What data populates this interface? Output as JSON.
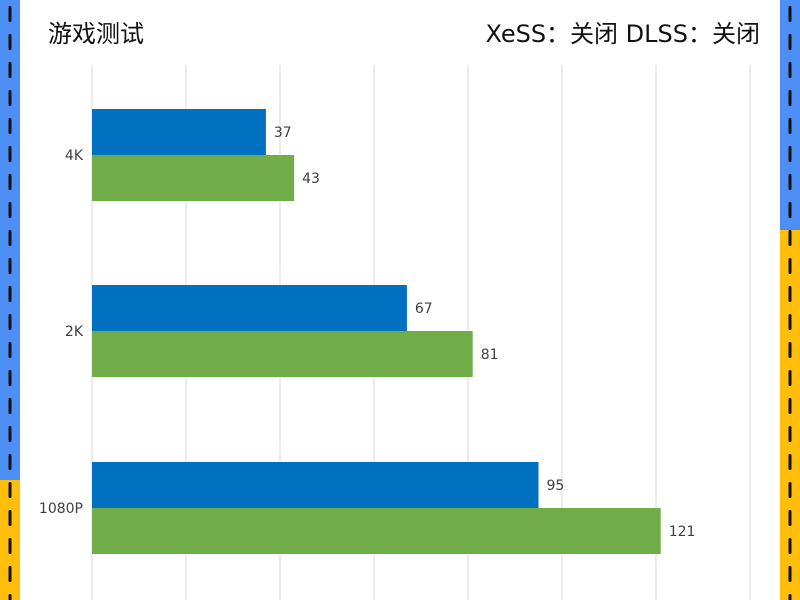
{
  "header": {
    "title": "游戏测试",
    "settings": "XeSS：关闭 DLSS：关闭"
  },
  "colors": {
    "series_blue": "#0070C0",
    "series_green": "#70AD47",
    "gridline": "#D9D9D9",
    "side_blue": "#4D8FF5",
    "side_yellow": "#FFBE0A",
    "dash": "#111111"
  },
  "chart_data": {
    "type": "bar",
    "orientation": "horizontal",
    "categories": [
      "4K",
      "2K",
      "1080P"
    ],
    "series": [
      {
        "values": [
          37,
          67,
          95
        ]
      },
      {
        "values": [
          43,
          81,
          121
        ]
      }
    ],
    "xlim": [
      0,
      140
    ],
    "grid": true,
    "legend": "none"
  }
}
